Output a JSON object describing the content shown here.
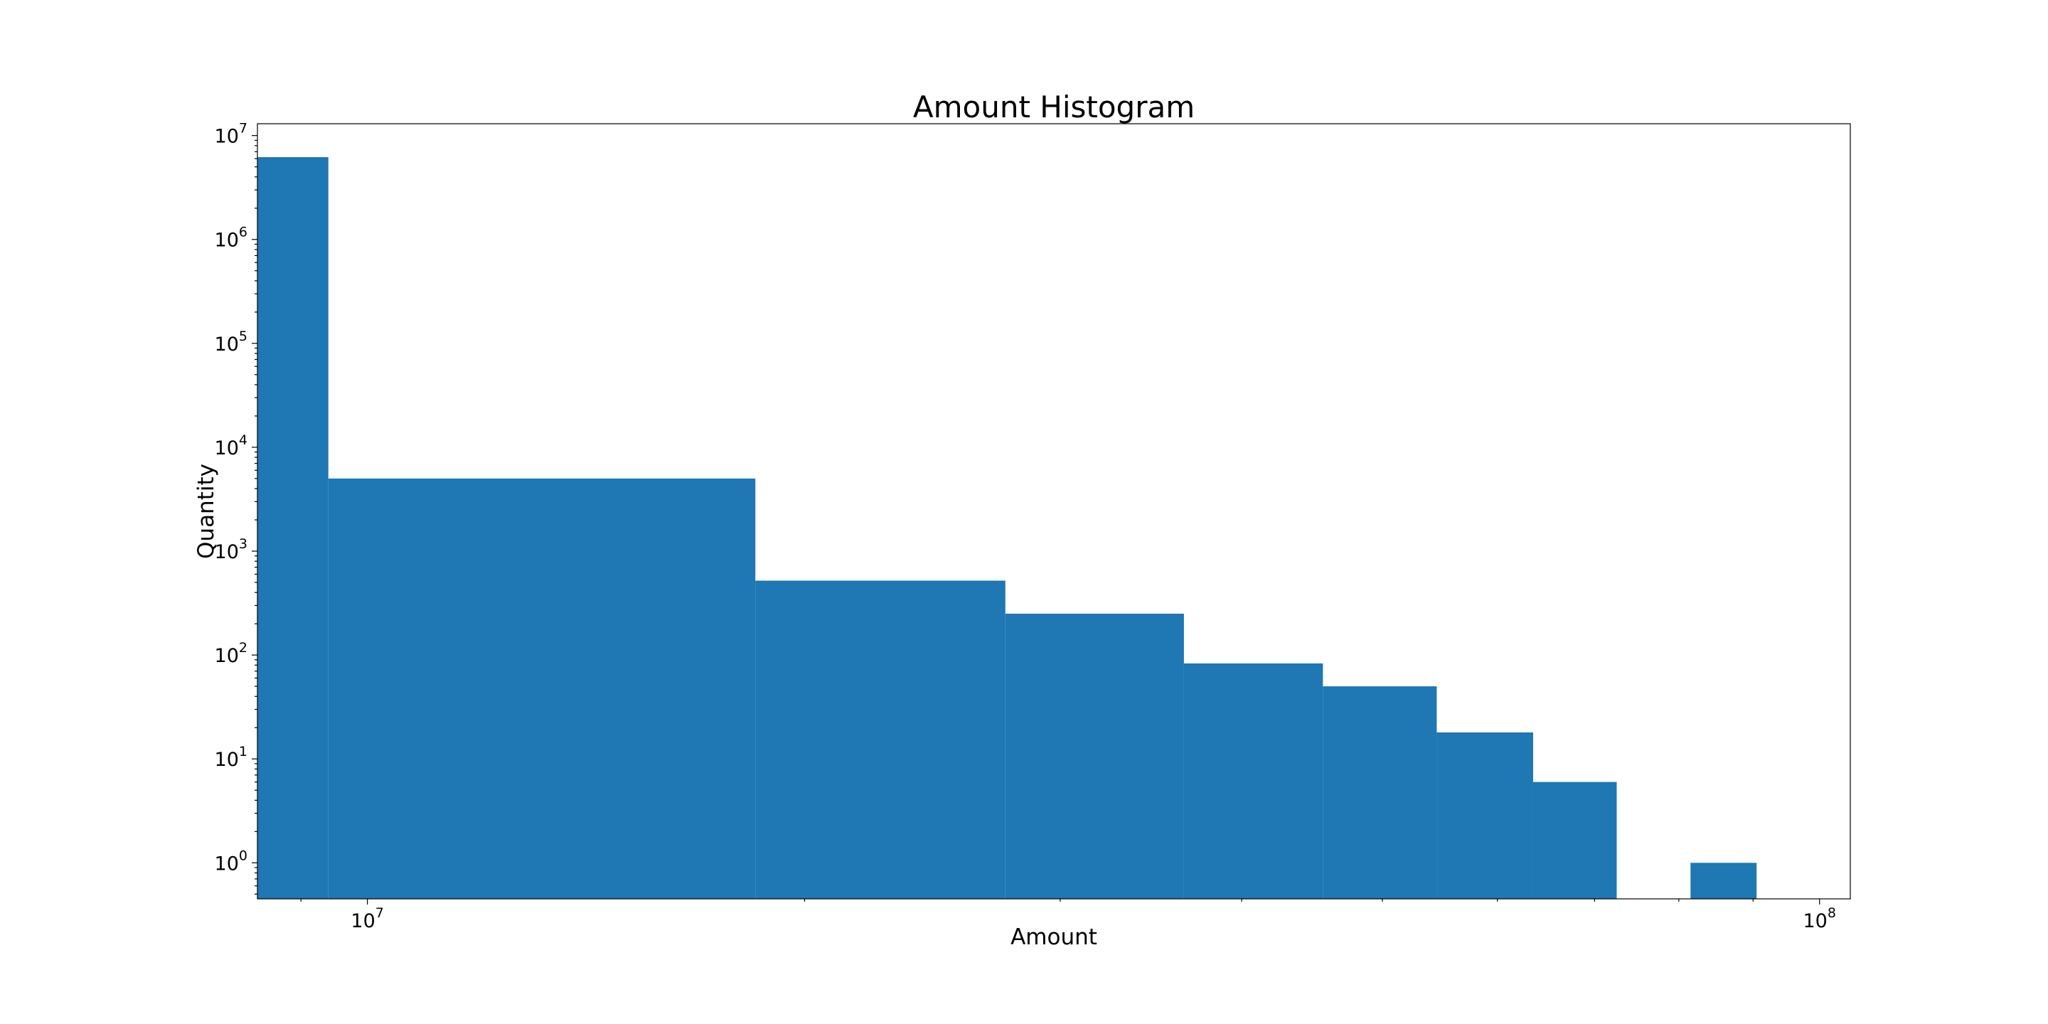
{
  "chart_data": {
    "type": "bar",
    "title": "Amount Histogram",
    "xlabel": "Amount",
    "ylabel": "Quantity",
    "x_scale": "log",
    "y_scale": "log",
    "xlim": [
      8400000,
      105000000
    ],
    "ylim": [
      0.45,
      13000000
    ],
    "x_ticks": [
      {
        "value": 10000000,
        "base": "10",
        "exp": "7"
      },
      {
        "value": 100000000,
        "base": "10",
        "exp": "8"
      }
    ],
    "y_ticks": [
      {
        "value": 1,
        "base": "10",
        "exp": "0"
      },
      {
        "value": 10,
        "base": "10",
        "exp": "1"
      },
      {
        "value": 100,
        "base": "10",
        "exp": "2"
      },
      {
        "value": 1000,
        "base": "10",
        "exp": "3"
      },
      {
        "value": 10000,
        "base": "10",
        "exp": "4"
      },
      {
        "value": 100000,
        "base": "10",
        "exp": "5"
      },
      {
        "value": 1000000,
        "base": "10",
        "exp": "6"
      },
      {
        "value": 10000000,
        "base": "10",
        "exp": "7"
      }
    ],
    "grid": false,
    "bars": [
      {
        "x0": 8400000,
        "x1": 9400000,
        "count": 6200000
      },
      {
        "x0": 9400000,
        "x1": 18500000,
        "count": 5000
      },
      {
        "x0": 18500000,
        "x1": 27500000,
        "count": 520
      },
      {
        "x0": 27500000,
        "x1": 36500000,
        "count": 250
      },
      {
        "x0": 36500000,
        "x1": 45500000,
        "count": 83
      },
      {
        "x0": 45500000,
        "x1": 54500000,
        "count": 50
      },
      {
        "x0": 54500000,
        "x1": 63500000,
        "count": 18
      },
      {
        "x0": 63500000,
        "x1": 72500000,
        "count": 6
      },
      {
        "x0": 81500000,
        "x1": 90500000,
        "count": 1
      }
    ],
    "colors": {
      "bar": "#1f77b4",
      "frame": "#000000"
    }
  }
}
